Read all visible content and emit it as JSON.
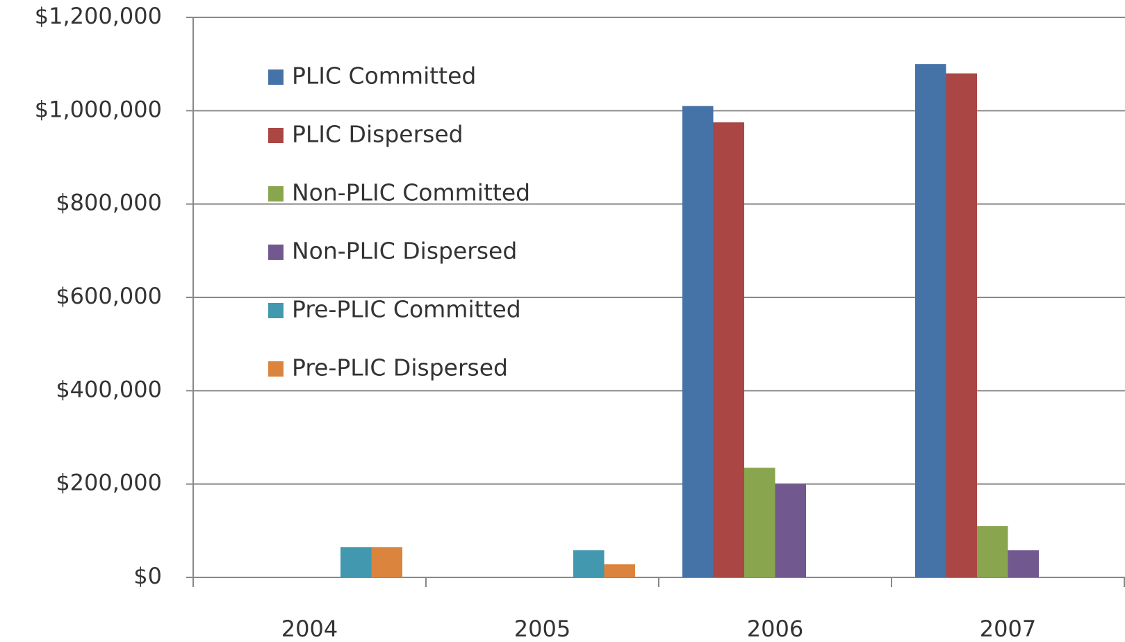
{
  "chart_data": {
    "type": "bar",
    "categories": [
      "2004",
      "2005",
      "2006",
      "2007"
    ],
    "series": [
      {
        "name": "PLIC Committed",
        "color": "#4572a7",
        "values": [
          null,
          null,
          1010000,
          1100000
        ]
      },
      {
        "name": "PLIC Dispersed",
        "color": "#aa4643",
        "values": [
          null,
          null,
          975000,
          1080000
        ]
      },
      {
        "name": "Non-PLIC Committed",
        "color": "#89a54e",
        "values": [
          null,
          null,
          235000,
          110000
        ]
      },
      {
        "name": "Non-PLIC Dispersed",
        "color": "#71588f",
        "values": [
          null,
          null,
          200000,
          58000
        ]
      },
      {
        "name": "Pre-PLIC Committed",
        "color": "#4198af",
        "values": [
          65000,
          58000,
          null,
          null
        ]
      },
      {
        "name": "Pre-PLIC Dispersed",
        "color": "#db843d",
        "values": [
          65000,
          28000,
          null,
          null
        ]
      }
    ],
    "ylim": [
      0,
      1200000
    ],
    "yticks": [
      {
        "value": 0,
        "label": "$0"
      },
      {
        "value": 200000,
        "label": "$200,000"
      },
      {
        "value": 400000,
        "label": "$400,000"
      },
      {
        "value": 600000,
        "label": "$600,000"
      },
      {
        "value": 800000,
        "label": "$800,000"
      },
      {
        "value": 1000000,
        "label": "$1,000,000"
      },
      {
        "value": 1200000,
        "label": "$1,200,000"
      }
    ],
    "grid": true,
    "legend": "upper left"
  }
}
